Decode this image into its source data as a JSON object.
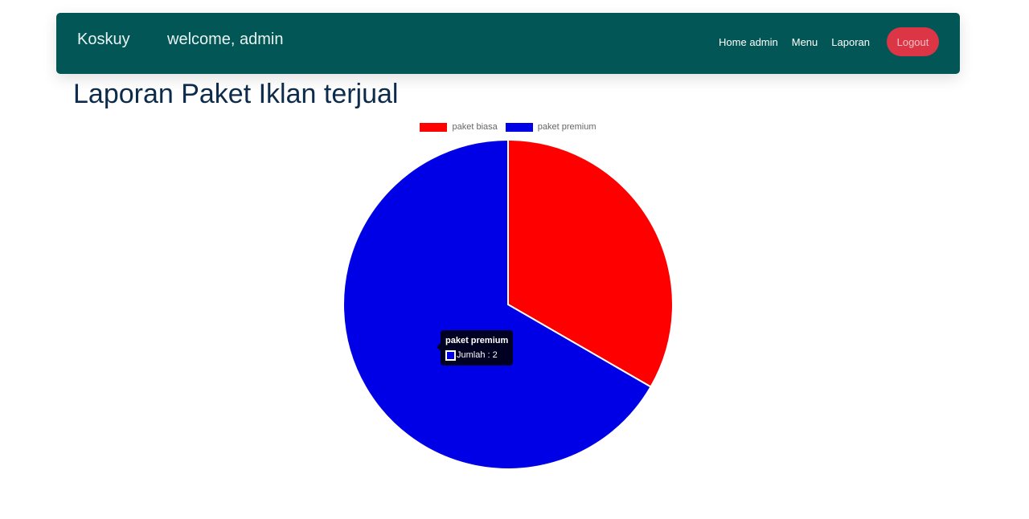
{
  "navbar": {
    "brand": "Koskuy",
    "welcome": "welcome, admin",
    "links": [
      "Home admin",
      "Menu",
      "Laporan"
    ],
    "logout_label": "Logout",
    "background_color": "#025756",
    "logout_color": "#dc3545"
  },
  "page": {
    "title": "Laporan Paket Iklan terjual"
  },
  "chart_data": {
    "type": "pie",
    "title": "",
    "categories": [
      "paket biasa",
      "paket premium"
    ],
    "values": [
      1,
      2
    ],
    "colors": [
      "#ff0000",
      "#0000e6"
    ],
    "legend_position": "top",
    "tooltip": {
      "title": "paket premium",
      "label": "Jumlah : 2",
      "color": "#0000e6"
    }
  }
}
